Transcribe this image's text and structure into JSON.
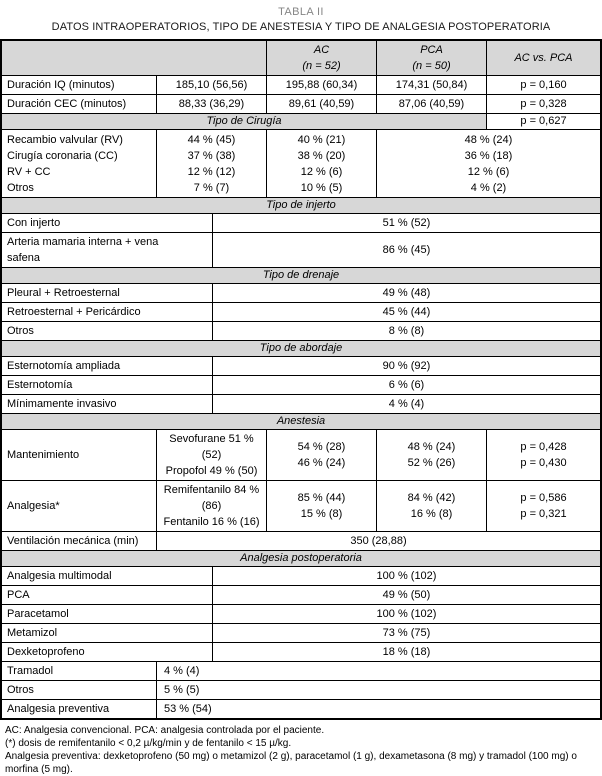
{
  "title": {
    "line1": "TABLA II",
    "line2": "DATOS INTRAOPERATORIOS, TIPO DE ANESTESIA Y TIPO DE ANALGESIA POSTOPERATORIA"
  },
  "colors": {
    "section_bg": "#d7d7d7",
    "border": "#000000"
  },
  "header": {
    "ac": "AC",
    "ac_n": "(n = 52)",
    "pca": "PCA",
    "pca_n": "(n = 50)",
    "comparison": "AC vs. PCA"
  },
  "duracion": [
    {
      "label": "Duración IQ (minutos)",
      "total": "185,10 (56,56)",
      "ac": "195,88 (60,34)",
      "pca": "174,31 (50,84)",
      "p": "p = 0,160"
    },
    {
      "label": "Duración CEC (minutos)",
      "total": "88,33 (36,29)",
      "ac": "89,61 (40,59)",
      "pca": "87,06 (40,59)",
      "p": "p = 0,328"
    }
  ],
  "cirugia": {
    "header": "Tipo de Cirugía",
    "p": "p = 0,627",
    "labels": [
      "Recambio valvular (RV)",
      "Cirugía coronaria (CC)",
      "RV + CC",
      "Otros"
    ],
    "total": [
      "44 % (45)",
      "37 % (38)",
      "12 % (12)",
      "7 % (7)"
    ],
    "ac": [
      "40 % (21)",
      "38 % (20)",
      "12 % (6)",
      "10 % (5)"
    ],
    "pca": [
      "48 % (24)",
      "36 % (18)",
      "12 % (6)",
      "4 % (2)"
    ]
  },
  "injerto": {
    "header": "Tipo de injerto",
    "rows": [
      {
        "label": "Con injerto",
        "value": "51 % (52)"
      },
      {
        "label": "Arteria mamaria interna + vena safena",
        "value": "86 % (45)"
      }
    ]
  },
  "drenaje": {
    "header": "Tipo de drenaje",
    "rows": [
      {
        "label": "Pleural + Retroesternal",
        "value": "49 % (48)"
      },
      {
        "label": "Retroesternal + Pericárdico",
        "value": "45 % (44)"
      },
      {
        "label": "Otros",
        "value": "8 % (8)"
      }
    ]
  },
  "abordaje": {
    "header": "Tipo de abordaje",
    "rows": [
      {
        "label": "Esternotomía ampliada",
        "value": "90 % (92)"
      },
      {
        "label": "Esternotomía",
        "value": "6 % (6)"
      },
      {
        "label": "Mínimamente invasivo",
        "value": "4 % (4)"
      }
    ]
  },
  "anestesia": {
    "header": "Anestesia",
    "mantenimiento": {
      "label": "Mantenimiento",
      "total": [
        "Sevofurane 51 % (52)",
        "Propofol 49 % (50)"
      ],
      "ac": [
        "54 % (28)",
        "46 % (24)"
      ],
      "pca": [
        "48 % (24)",
        "52 % (26)"
      ],
      "p": [
        "p = 0,428",
        "p = 0,430"
      ]
    },
    "analgesia": {
      "label": "Analgesia*",
      "total": [
        "Remifentanilo 84 % (86)",
        "Fentanilo 16 % (16)"
      ],
      "ac": [
        "85 % (44)",
        "15 % (8)"
      ],
      "pca": [
        "84 % (42)",
        "16 % (8)"
      ],
      "p": [
        "p = 0,586",
        "p = 0,321"
      ]
    },
    "ventilacion": {
      "label": "Ventilación mecánica (min)",
      "value": "350 (28,88)"
    }
  },
  "postop": {
    "header": "Analgesia postoperatoria",
    "rows_centered": [
      {
        "label": "Analgesia multimodal",
        "value": "100 % (102)"
      },
      {
        "label": "PCA",
        "value": "49 % (50)"
      },
      {
        "label": "Paracetamol",
        "value": "100 % (102)"
      },
      {
        "label": "Metamizol",
        "value": "73 % (75)"
      },
      {
        "label": "Dexketoprofeno",
        "value": "18 % (18)"
      }
    ],
    "rows_left": [
      {
        "label": "Tramadol",
        "value": "4 % (4)"
      },
      {
        "label": "Otros",
        "value": "5 % (5)"
      },
      {
        "label": "Analgesia preventiva",
        "value": "53 % (54)"
      }
    ]
  },
  "footnotes": [
    "AC: Analgesia convencional. PCA: analgesia controlada por el paciente.",
    "(*) dosis de remifentanilo < 0,2 µ/kg/min y de fentanilo < 15 µ/kg.",
    "Analgesia preventiva: dexketoprofeno (50 mg) o metamizol (2 g), paracetamol (1 g), dexametasona (8 mg) y tramadol (100 mg) o morfina (5 mg)."
  ]
}
